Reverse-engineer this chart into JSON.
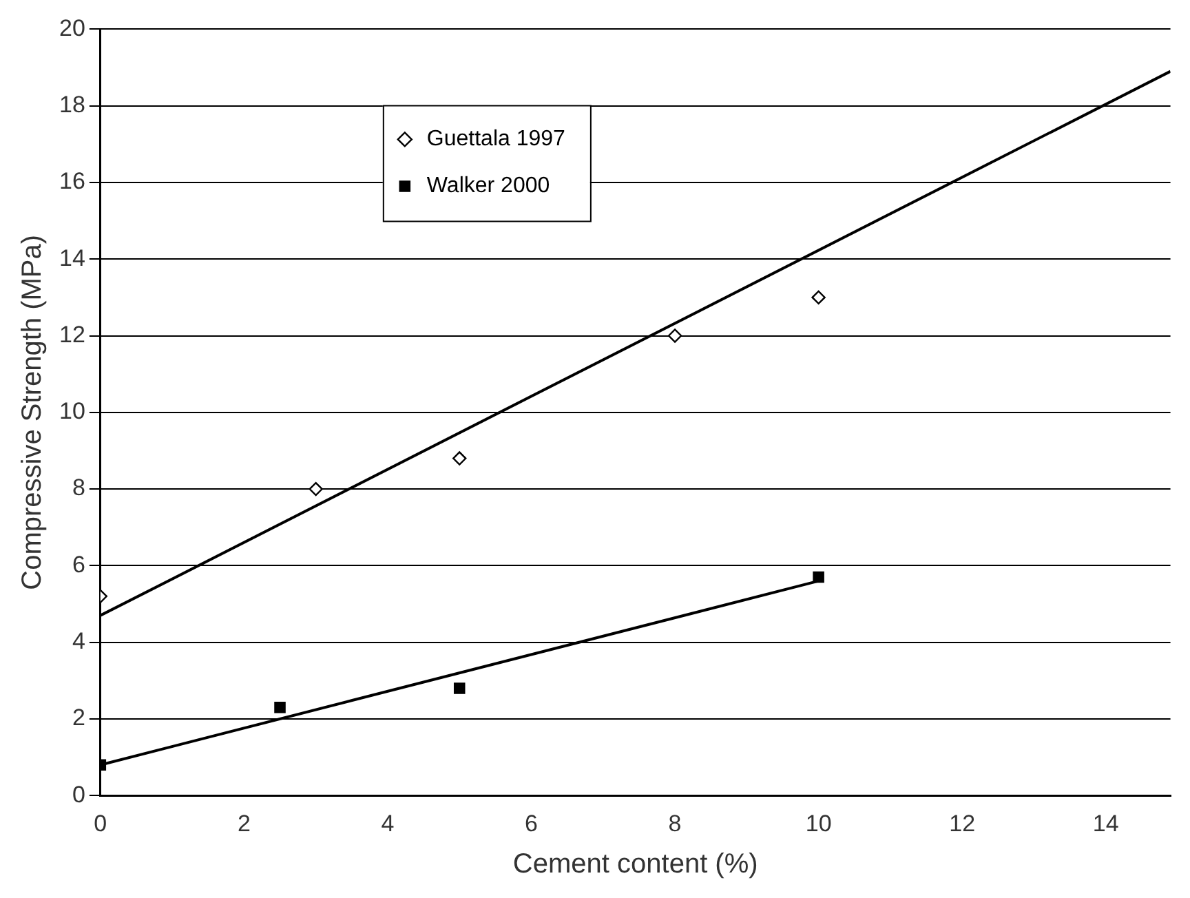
{
  "chart_data": {
    "type": "scatter",
    "xlabel": "Cement content (%)",
    "ylabel": "Compressive Strength (MPa)",
    "xlim": [
      0,
      14.9
    ],
    "xticks": [
      0,
      2,
      4,
      6,
      8,
      10,
      12,
      14
    ],
    "ylim": [
      0,
      20
    ],
    "yticks": [
      0,
      2,
      4,
      6,
      8,
      10,
      12,
      14,
      16,
      18,
      20
    ],
    "grid": "y",
    "legend": "top left",
    "series": [
      {
        "name": "Guettala 1997",
        "color": "#000000",
        "marker": "diamond",
        "x": [
          0,
          3,
          5,
          8,
          10
        ],
        "values": [
          5.2,
          8.0,
          8.8,
          12,
          13
        ]
      },
      {
        "name": "Walker 2000",
        "color": "#000000",
        "marker": "square",
        "x": [
          0,
          2.5,
          5,
          10
        ],
        "values": [
          0.8,
          2.3,
          2.8,
          5.7
        ]
      },
      {
        "type": "line",
        "color": "#000000",
        "marker": "none",
        "x": [
          0,
          14.9
        ],
        "values": [
          4.7,
          18.9
        ]
      },
      {
        "type": "line",
        "color": "#000000",
        "marker": "none",
        "x": [
          0,
          10
        ],
        "values": [
          0.8,
          5.6
        ]
      }
    ]
  }
}
